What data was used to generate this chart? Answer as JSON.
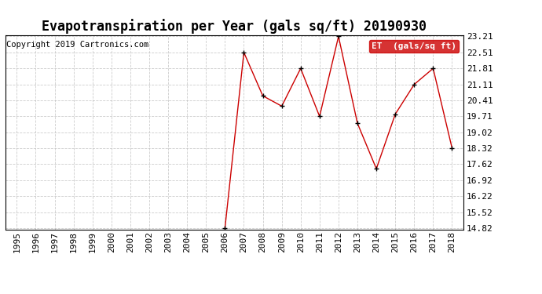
{
  "title": "Evapotranspiration per Year (gals sq/ft) 20190930",
  "copyright": "Copyright 2019 Cartronics.com",
  "legend_label": "ET  (gals/sq ft)",
  "years": [
    1995,
    1996,
    1997,
    1998,
    1999,
    2000,
    2001,
    2002,
    2003,
    2004,
    2005,
    2006,
    2007,
    2008,
    2009,
    2010,
    2011,
    2012,
    2013,
    2014,
    2015,
    2016,
    2017,
    2018
  ],
  "values": [
    null,
    null,
    null,
    null,
    null,
    null,
    null,
    null,
    null,
    null,
    null,
    14.82,
    22.51,
    20.61,
    20.16,
    21.81,
    19.71,
    23.21,
    19.41,
    17.42,
    19.81,
    21.11,
    21.81,
    18.32
  ],
  "yticks": [
    14.82,
    15.52,
    16.22,
    16.92,
    17.62,
    18.32,
    19.02,
    19.71,
    20.41,
    21.11,
    21.81,
    22.51,
    23.21
  ],
  "line_color": "#cc0000",
  "marker": "+",
  "marker_color": "#000000",
  "grid_color": "#c0c0c0",
  "bg_color": "#ffffff",
  "legend_bg": "#cc0000",
  "legend_text_color": "#ffffff",
  "title_fontsize": 12,
  "axis_fontsize": 8,
  "copyright_fontsize": 7.5
}
